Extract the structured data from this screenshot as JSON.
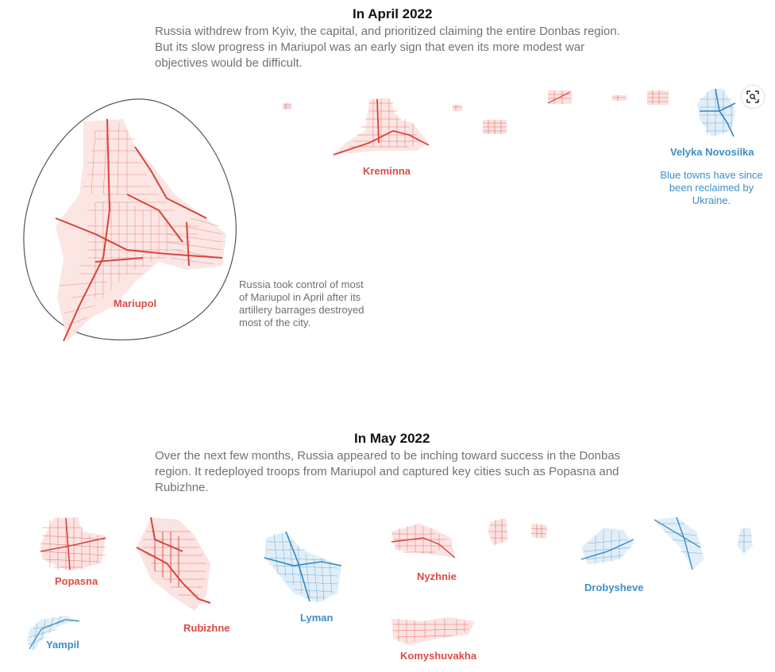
{
  "april": {
    "title": "In April 2022",
    "description": "Russia withdrew from Kyiv, the capital, and prioritized claiming the entire Donbas region. But its slow progress in Mariupol was an early sign that even its more modest war objectives would be difficult.",
    "annotation_mariupol": "Russia took control of most of Mariupol in April after its artillery barrages destroyed most of the city.",
    "annotation_blue": "Blue towns have since been reclaimed by Ukraine.",
    "towns": [
      {
        "name": "Mariupol",
        "status": "russian"
      },
      {
        "name": "Kreminna",
        "status": "russian"
      },
      {
        "name": "Velyka Novosilka",
        "status": "ukrainian"
      }
    ]
  },
  "may": {
    "title": "In May 2022",
    "description": "Over the next few months, Russia appeared to be inching toward success in the Donbas region. It redeployed troops from Mariupol and captured key cities such as Popasna and Rubizhne.",
    "towns": [
      {
        "name": "Popasna",
        "status": "russian"
      },
      {
        "name": "Rubizhne",
        "status": "russian"
      },
      {
        "name": "Lyman",
        "status": "ukrainian"
      },
      {
        "name": "Nyzhnie",
        "status": "russian"
      },
      {
        "name": "Drobysheve",
        "status": "ukrainian"
      },
      {
        "name": "Yampil",
        "status": "ukrainian"
      },
      {
        "name": "Komyshuvakha",
        "status": "russian"
      }
    ]
  },
  "colors": {
    "russian": "#df4a42",
    "ukrainian": "#3d8fc6",
    "russian_fill": "#fbe3e1",
    "ukrainian_fill": "#e2eef7"
  },
  "icons": {
    "zoom": "focus-zoom-icon"
  }
}
